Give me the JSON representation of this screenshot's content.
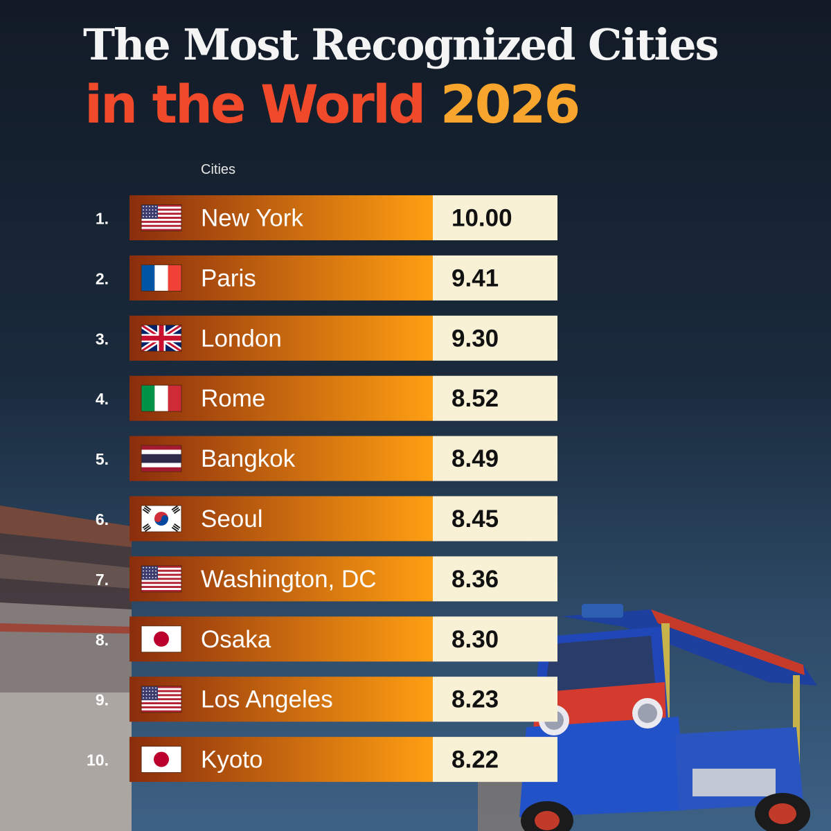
{
  "title": {
    "line1": "The Most Recognized Cities",
    "line2_part1": "in the World",
    "line2_part2": "2026"
  },
  "colors": {
    "bar_start": "#8a2d0c",
    "bar_end": "#ff9f12",
    "value_box": "#f8f1d6",
    "title_red": "#f04a2a",
    "title_yellow": "#f7a52c"
  },
  "chart_data": {
    "type": "table",
    "column_header": "Cities",
    "rows": [
      {
        "rank": "1.",
        "city": "New York",
        "flag": "us-flag-icon",
        "value": "10.00"
      },
      {
        "rank": "2.",
        "city": "Paris",
        "flag": "france-flag-icon",
        "value": "9.41"
      },
      {
        "rank": "3.",
        "city": "London",
        "flag": "uk-flag-icon",
        "value": "9.30"
      },
      {
        "rank": "4.",
        "city": "Rome",
        "flag": "italy-flag-icon",
        "value": "8.52"
      },
      {
        "rank": "5.",
        "city": "Bangkok",
        "flag": "thailand-flag-icon",
        "value": "8.49"
      },
      {
        "rank": "6.",
        "city": "Seoul",
        "flag": "south-korea-flag-icon",
        "value": "8.45"
      },
      {
        "rank": "7.",
        "city": "Washington, DC",
        "flag": "us-flag-icon",
        "value": "8.36"
      },
      {
        "rank": "8.",
        "city": "Osaka",
        "flag": "japan-flag-icon",
        "value": "8.30"
      },
      {
        "rank": "9.",
        "city": "Los Angeles",
        "flag": "us-flag-icon",
        "value": "8.23"
      },
      {
        "rank": "10.",
        "city": "Kyoto",
        "flag": "japan-flag-icon",
        "value": "8.22"
      }
    ]
  }
}
